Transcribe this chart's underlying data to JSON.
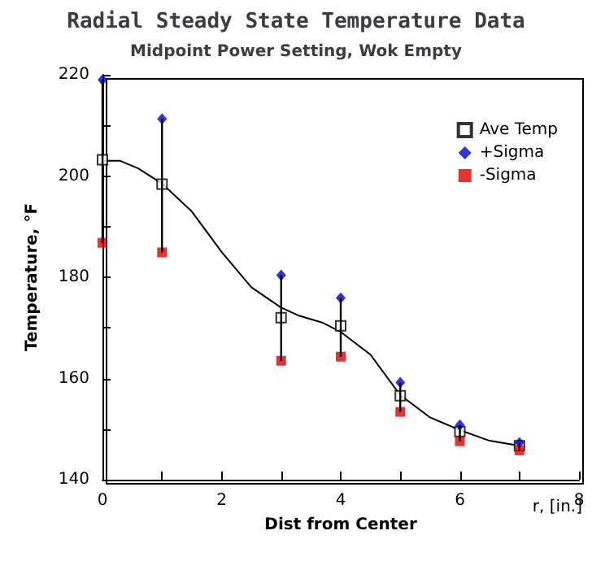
{
  "chart_data": {
    "type": "scatter",
    "title": "Radial Steady State Temperature Data",
    "subtitle": "Midpoint Power Setting, Wok Empty",
    "xlabel": "Dist from Center",
    "ylabel": "Temperature, °F",
    "annotations": [
      "r, [in.]"
    ],
    "xlim": [
      0,
      8
    ],
    "xticks": [
      0,
      {
        "value": 1,
        "label": null
      },
      2,
      {
        "value": 3,
        "label": null
      },
      4,
      {
        "value": 5,
        "label": null
      },
      6,
      {
        "value": 7,
        "label": null
      },
      8
    ],
    "ylim": [
      140,
      220
    ],
    "yticks": [
      140,
      {
        "value": 150,
        "label": null
      },
      160,
      {
        "value": 170,
        "label": null
      },
      180,
      {
        "value": 190,
        "label": null
      },
      200,
      {
        "value": 210,
        "label": null
      },
      220
    ],
    "x": [
      0,
      1,
      3,
      4,
      5,
      6,
      7
    ],
    "grid": false,
    "legend": "top right",
    "series": [
      {
        "name": "Ave Temp",
        "color": "#000000",
        "marker": "square",
        "values": [
          203.2,
          198.4,
          172,
          170.4,
          156.6,
          149.5,
          146.7
        ],
        "errors": [
          [
            186.8,
            219
          ],
          [
            184.9,
            211.3
          ],
          [
            163.5,
            180.4
          ],
          [
            164.3,
            175.9
          ],
          [
            153.4,
            159.2
          ],
          [
            147.6,
            150.8
          ],
          [
            145.8,
            147.3
          ]
        ]
      },
      {
        "name": "+Sigma",
        "color": "#0000cc",
        "marker": "diamond",
        "values": [
          219,
          211.3,
          180.4,
          175.9,
          159.2,
          150.8,
          147.3
        ]
      },
      {
        "name": "-Sigma",
        "color": "#dd0000",
        "marker": "square",
        "values": [
          186.8,
          184.9,
          163.5,
          164.3,
          153.4,
          147.6,
          145.8
        ]
      },
      {
        "type": "line",
        "color": "#000000",
        "marker": "none",
        "line_style": "solid",
        "x": [
          0,
          0.3,
          0.6,
          1,
          1.5,
          2,
          2.5,
          3,
          3.3,
          3.7,
          4,
          4.5,
          5,
          5.5,
          6,
          6.5,
          7
        ],
        "values": [
          203,
          203,
          201.5,
          198.5,
          193,
          185,
          178,
          174,
          172.4,
          171,
          169.2,
          164.7,
          156.7,
          152.3,
          149.8,
          147.7,
          146.7
        ]
      }
    ]
  }
}
